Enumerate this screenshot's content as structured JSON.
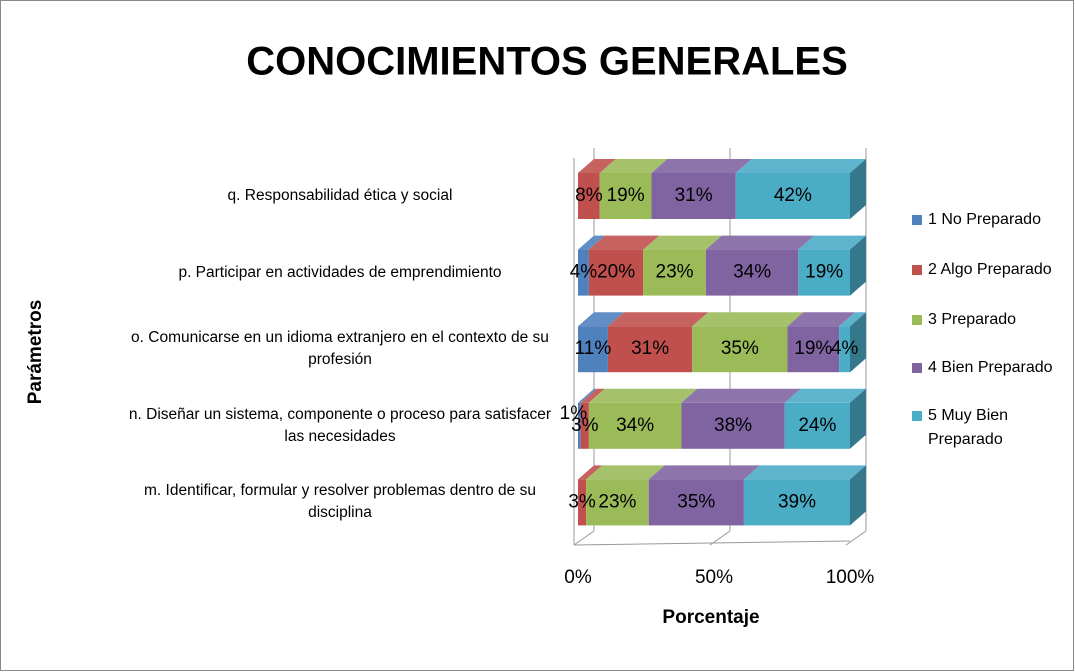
{
  "chart_data": {
    "type": "bar3d_stacked_100_horizontal",
    "title": "CONOCIMIENTOS GENERALES",
    "xlabel": "Porcentaje",
    "ylabel": "Parámetros",
    "categories": [
      "q. Responsabilidad ética y social",
      "p. Participar en actividades de emprendimiento",
      "o. Comunicarse en un idioma extranjero en el contexto de su profesión",
      "n. Diseñar un sistema, componente o proceso para satisfacer las necesidades",
      "m. Identificar, formular y resolver problemas dentro de su disciplina"
    ],
    "series": [
      {
        "name": "1 No Preparado",
        "color": "#4f81bd",
        "values": [
          0,
          4,
          11,
          1,
          0
        ],
        "value_labels": [
          null,
          "4%",
          "11%",
          "1%",
          null
        ]
      },
      {
        "name": "2 Algo Preparado",
        "color": "#c0504d",
        "values": [
          8,
          20,
          31,
          3,
          3
        ],
        "value_labels": [
          "8%",
          "20%",
          "31%",
          "3%",
          "3%"
        ]
      },
      {
        "name": "3 Preparado",
        "color": "#9bbb59",
        "values": [
          19,
          23,
          35,
          34,
          23
        ],
        "value_labels": [
          "19%",
          "23%",
          "35%",
          "34%",
          "23%"
        ]
      },
      {
        "name": "4 Bien Preparado",
        "color": "#8064a2",
        "values": [
          31,
          34,
          19,
          38,
          35
        ],
        "value_labels": [
          "31%",
          "34%",
          "19%",
          "38%",
          "35%"
        ]
      },
      {
        "name": "5 Muy Bien Preparado",
        "color": "#4bacc6",
        "values": [
          42,
          19,
          4,
          24,
          39
        ],
        "value_labels": [
          "42%",
          "19%",
          "4%",
          "24%",
          "39%"
        ]
      }
    ],
    "xlim": [
      0,
      100
    ],
    "xticks": [
      {
        "value": 0,
        "label": "0%"
      },
      {
        "value": 50,
        "label": "50%"
      },
      {
        "value": 100,
        "label": "100%"
      }
    ],
    "grid": true,
    "legend": "right"
  }
}
